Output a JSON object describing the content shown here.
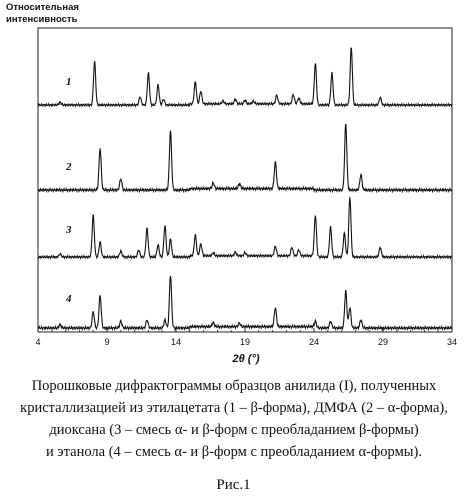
{
  "chart_data": {
    "type": "line",
    "ylabel": "Относительная интенсивность",
    "xlabel": "2θ (°)",
    "xlim": [
      4,
      34
    ],
    "xticks": [
      "4",
      "9",
      "14",
      "19",
      "24",
      "29",
      "34"
    ],
    "grid": false,
    "series": [
      {
        "name": "1",
        "peaks": [
          [
            5.6,
            0.05
          ],
          [
            8.1,
            0.75
          ],
          [
            11.4,
            0.14
          ],
          [
            12.0,
            0.55
          ],
          [
            12.7,
            0.35
          ],
          [
            13.1,
            0.1
          ],
          [
            15.4,
            0.38
          ],
          [
            15.8,
            0.22
          ],
          [
            17.4,
            0.05
          ],
          [
            18.3,
            0.08
          ],
          [
            19.0,
            0.06
          ],
          [
            19.6,
            0.05
          ],
          [
            21.3,
            0.15
          ],
          [
            22.5,
            0.16
          ],
          [
            22.9,
            0.1
          ],
          [
            24.1,
            0.72
          ],
          [
            25.3,
            0.55
          ],
          [
            26.7,
            1.0
          ],
          [
            28.8,
            0.13
          ]
        ]
      },
      {
        "name": "2",
        "peaks": [
          [
            8.5,
            0.6
          ],
          [
            10.0,
            0.16
          ],
          [
            13.6,
            0.85
          ],
          [
            16.7,
            0.08
          ],
          [
            18.6,
            0.07
          ],
          [
            21.2,
            0.38
          ],
          [
            26.3,
            0.95
          ],
          [
            27.4,
            0.22
          ]
        ]
      },
      {
        "name": "3",
        "peaks": [
          [
            5.6,
            0.05
          ],
          [
            8.0,
            0.7
          ],
          [
            8.5,
            0.25
          ],
          [
            10.0,
            0.1
          ],
          [
            11.3,
            0.12
          ],
          [
            11.9,
            0.48
          ],
          [
            12.7,
            0.2
          ],
          [
            13.2,
            0.52
          ],
          [
            13.6,
            0.3
          ],
          [
            15.4,
            0.35
          ],
          [
            15.8,
            0.2
          ],
          [
            16.7,
            0.05
          ],
          [
            18.3,
            0.06
          ],
          [
            19.0,
            0.05
          ],
          [
            21.2,
            0.16
          ],
          [
            22.4,
            0.14
          ],
          [
            22.9,
            0.1
          ],
          [
            24.1,
            0.7
          ],
          [
            25.2,
            0.5
          ],
          [
            26.2,
            0.4
          ],
          [
            26.6,
            1.0
          ],
          [
            28.8,
            0.16
          ]
        ]
      },
      {
        "name": "4",
        "peaks": [
          [
            5.6,
            0.05
          ],
          [
            8.0,
            0.24
          ],
          [
            8.5,
            0.48
          ],
          [
            10.0,
            0.1
          ],
          [
            11.9,
            0.12
          ],
          [
            13.2,
            0.12
          ],
          [
            13.6,
            0.78
          ],
          [
            16.7,
            0.06
          ],
          [
            18.6,
            0.05
          ],
          [
            21.2,
            0.28
          ],
          [
            24.1,
            0.1
          ],
          [
            25.2,
            0.1
          ],
          [
            26.3,
            0.55
          ],
          [
            26.6,
            0.3
          ],
          [
            27.4,
            0.12
          ]
        ]
      }
    ]
  },
  "caption": {
    "line1": "Порошковые дифрактограммы образцов анилида (I), полученных",
    "line2": "кристаллизацией из этилацетата (1 – β-форма), ДМФА (2 – α-форма),",
    "line3": "диоксана (3 – смесь α- и β-форм с преобладанием β-формы)",
    "line4": "и этанола (4 – смесь α- и β-форм с преобладанием α-формы)."
  },
  "figure_label": "Рис.1"
}
